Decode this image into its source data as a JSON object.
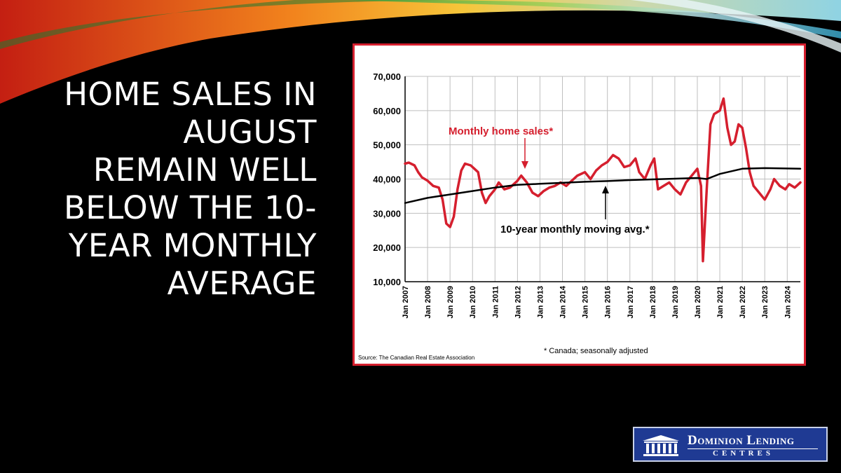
{
  "slide": {
    "title_lines": [
      "HOME SALES IN",
      "AUGUST",
      "REMAIN WELL",
      "BELOW THE 10-",
      "YEAR MONTHLY",
      "AVERAGE"
    ]
  },
  "logo": {
    "line1": "Dominion Lending",
    "line2": "CENTRES"
  },
  "colors": {
    "background": "#000000",
    "frame": "#d51f2e",
    "monthly_series": "#d51f2e",
    "average_series": "#000000",
    "logo_bg": "#1f3a93"
  },
  "chart_data": {
    "type": "line",
    "yticks": [
      "70,000",
      "60,000",
      "50,000",
      "40,000",
      "30,000",
      "20,000",
      "10,000"
    ],
    "ylim": [
      10000,
      70000
    ],
    "xlim": [
      "2007-01",
      "2024-08"
    ],
    "x_ticks": [
      "Jan 2007",
      "Jan 2008",
      "Jan 2009",
      "Jan 2010",
      "Jan 2011",
      "Jan 2012",
      "Jan 2013",
      "Jan 2014",
      "Jan 2015",
      "Jan 2016",
      "Jan 2017",
      "Jan 2018",
      "Jan 2019",
      "Jan 2020",
      "Jan 2021",
      "Jan 2022",
      "Jan 2023",
      "Jan 2024"
    ],
    "grid": true,
    "series": [
      {
        "name": "Monthly home sales*",
        "points": [
          [
            "2007-01",
            44500
          ],
          [
            "2007-03",
            44800
          ],
          [
            "2007-06",
            44000
          ],
          [
            "2007-08",
            42000
          ],
          [
            "2007-10",
            40500
          ],
          [
            "2008-01",
            39500
          ],
          [
            "2008-04",
            38000
          ],
          [
            "2008-07",
            37500
          ],
          [
            "2008-09",
            34000
          ],
          [
            "2008-11",
            27000
          ],
          [
            "2009-01",
            26000
          ],
          [
            "2009-03",
            29000
          ],
          [
            "2009-05",
            37000
          ],
          [
            "2009-07",
            42500
          ],
          [
            "2009-09",
            44500
          ],
          [
            "2009-12",
            44000
          ],
          [
            "2010-02",
            43000
          ],
          [
            "2010-04",
            42000
          ],
          [
            "2010-06",
            36000
          ],
          [
            "2010-08",
            33000
          ],
          [
            "2010-10",
            35000
          ],
          [
            "2011-01",
            37000
          ],
          [
            "2011-03",
            39000
          ],
          [
            "2011-06",
            37000
          ],
          [
            "2011-09",
            37500
          ],
          [
            "2012-01",
            39500
          ],
          [
            "2012-03",
            41000
          ],
          [
            "2012-06",
            39000
          ],
          [
            "2012-09",
            36000
          ],
          [
            "2012-12",
            35000
          ],
          [
            "2013-03",
            36500
          ],
          [
            "2013-06",
            37500
          ],
          [
            "2013-09",
            38000
          ],
          [
            "2013-12",
            39000
          ],
          [
            "2014-03",
            38000
          ],
          [
            "2014-06",
            39500
          ],
          [
            "2014-09",
            41000
          ],
          [
            "2015-01",
            42000
          ],
          [
            "2015-04",
            40000
          ],
          [
            "2015-07",
            42500
          ],
          [
            "2015-10",
            44000
          ],
          [
            "2016-01",
            45000
          ],
          [
            "2016-04",
            47000
          ],
          [
            "2016-07",
            46000
          ],
          [
            "2016-10",
            43500
          ],
          [
            "2017-01",
            44000
          ],
          [
            "2017-04",
            46000
          ],
          [
            "2017-06",
            42000
          ],
          [
            "2017-09",
            40000
          ],
          [
            "2017-12",
            44000
          ],
          [
            "2018-02",
            46000
          ],
          [
            "2018-04",
            37000
          ],
          [
            "2018-07",
            38000
          ],
          [
            "2018-10",
            39000
          ],
          [
            "2019-01",
            37000
          ],
          [
            "2019-04",
            35500
          ],
          [
            "2019-07",
            39000
          ],
          [
            "2019-10",
            41000
          ],
          [
            "2020-01",
            43000
          ],
          [
            "2020-03",
            38000
          ],
          [
            "2020-04",
            16000
          ],
          [
            "2020-06",
            37000
          ],
          [
            "2020-08",
            56000
          ],
          [
            "2020-10",
            59000
          ],
          [
            "2021-01",
            60000
          ],
          [
            "2021-03",
            63500
          ],
          [
            "2021-05",
            55000
          ],
          [
            "2021-07",
            50000
          ],
          [
            "2021-09",
            51000
          ],
          [
            "2021-11",
            56000
          ],
          [
            "2022-01",
            55000
          ],
          [
            "2022-03",
            49000
          ],
          [
            "2022-05",
            42000
          ],
          [
            "2022-07",
            38000
          ],
          [
            "2022-10",
            36000
          ],
          [
            "2023-01",
            34000
          ],
          [
            "2023-04",
            37000
          ],
          [
            "2023-06",
            40000
          ],
          [
            "2023-09",
            38000
          ],
          [
            "2023-12",
            37000
          ],
          [
            "2024-02",
            38500
          ],
          [
            "2024-05",
            37500
          ],
          [
            "2024-08",
            39000
          ]
        ]
      },
      {
        "name": "10-year monthly moving avg.*",
        "points": [
          [
            "2007-01",
            33000
          ],
          [
            "2008-01",
            34500
          ],
          [
            "2009-01",
            35500
          ],
          [
            "2010-01",
            36500
          ],
          [
            "2011-01",
            37500
          ],
          [
            "2012-01",
            38300
          ],
          [
            "2013-01",
            38600
          ],
          [
            "2014-01",
            38900
          ],
          [
            "2015-01",
            39200
          ],
          [
            "2016-01",
            39400
          ],
          [
            "2017-01",
            39700
          ],
          [
            "2018-01",
            39900
          ],
          [
            "2019-01",
            40100
          ],
          [
            "2020-01",
            40300
          ],
          [
            "2020-06",
            40000
          ],
          [
            "2021-01",
            41500
          ],
          [
            "2022-01",
            43000
          ],
          [
            "2023-01",
            43200
          ],
          [
            "2024-08",
            43000
          ]
        ]
      }
    ],
    "annotations": [
      {
        "text": "Monthly home sales*"
      },
      {
        "text": "10-year monthly moving avg.*"
      }
    ],
    "footnote": "* Canada; seasonally adjusted",
    "source": "Source: The Canadian Real Estate Association"
  }
}
